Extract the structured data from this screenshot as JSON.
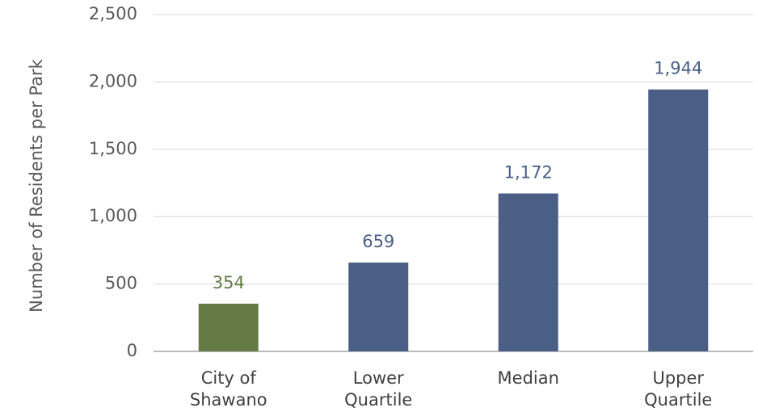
{
  "chart_data": {
    "type": "bar",
    "y_label": "Number of Residents per Park",
    "categories": [
      "City of Shawano",
      "Lower Quartile",
      "Median",
      "Upper Quartile"
    ],
    "values": [
      354,
      659,
      1172,
      1944
    ],
    "value_labels": [
      "354",
      "659",
      "1,172",
      "1,944"
    ],
    "colors": [
      "#647b45",
      "#4a5e86",
      "#4a5e86",
      "#4a5e86"
    ],
    "ylim": [
      0,
      2500
    ],
    "yticks": [
      0,
      500,
      {
        "value": 1000,
        "label": "1,000"
      },
      {
        "value": 1500,
        "label": "1,500"
      },
      {
        "value": 2000,
        "label": "2,000"
      },
      {
        "value": 2500,
        "label": "2,500"
      }
    ],
    "grid": true
  }
}
